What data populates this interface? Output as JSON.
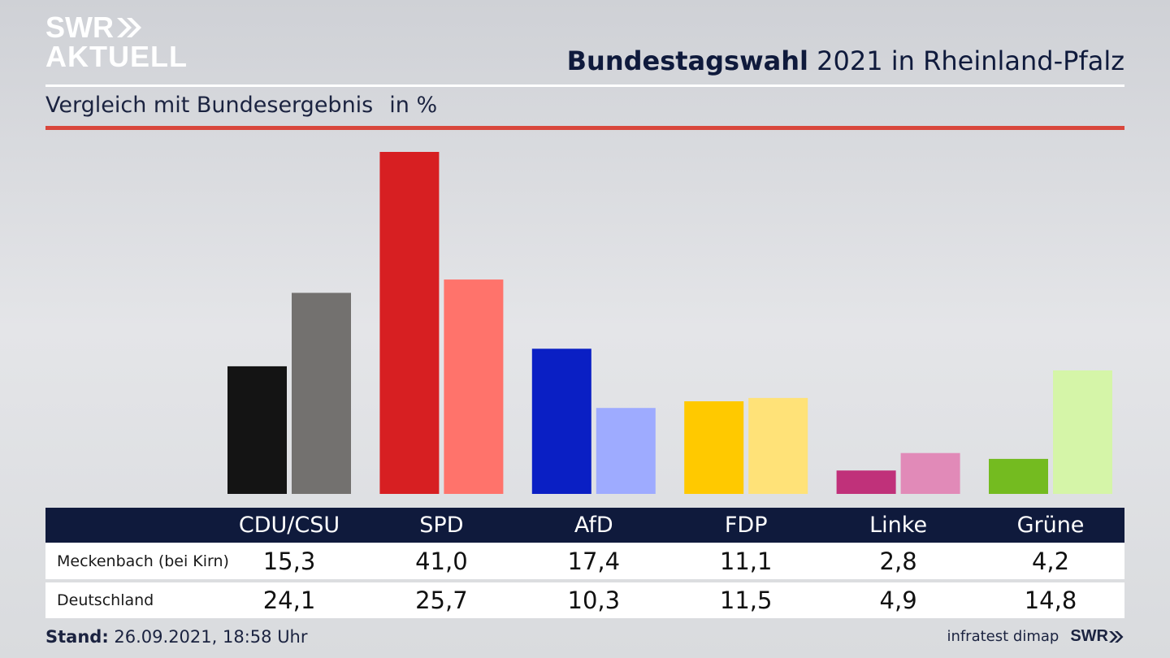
{
  "brand": {
    "logo_line1": "SWR",
    "logo_line2": "AKTUELL",
    "footer_brand": "SWR"
  },
  "header": {
    "title_bold": "Bundestagswahl",
    "title_rest": "2021 in Rheinland-Pfalz",
    "subtitle": "Vergleich mit Bundesergebnis",
    "unit": "in %"
  },
  "footer": {
    "stand_label": "Stand:",
    "stand_value": "26.09.2021, 18:58 Uhr",
    "source": "infratest dimap"
  },
  "colors": {
    "title": "#0f1a3c",
    "accent_line": "#d9463c",
    "table_header": "#0f1a3c"
  },
  "chart_data": {
    "type": "bar",
    "categories": [
      "CDU/CSU",
      "SPD",
      "AfD",
      "FDP",
      "Linke",
      "Grüne"
    ],
    "series": [
      {
        "name": "Meckenbach (bei Kirn)",
        "values": [
          15.3,
          41.0,
          17.4,
          11.1,
          2.8,
          4.2
        ],
        "labels": [
          "15,3",
          "41,0",
          "17,4",
          "11,1",
          "2,8",
          "4,2"
        ],
        "colors": [
          "#141414",
          "#d71f22",
          "#0a1fc4",
          "#ffc900",
          "#c0317a",
          "#74bb20"
        ]
      },
      {
        "name": "Deutschland",
        "values": [
          24.1,
          25.7,
          10.3,
          11.5,
          4.9,
          14.8
        ],
        "labels": [
          "24,1",
          "25,7",
          "10,3",
          "11,5",
          "4,9",
          "14,8"
        ],
        "colors": [
          "#73716f",
          "#ff736b",
          "#9eabff",
          "#ffe278",
          "#e18ab8",
          "#d5f5a8"
        ]
      }
    ],
    "ylim": [
      0,
      41
    ],
    "grid": false,
    "legend": "none"
  }
}
